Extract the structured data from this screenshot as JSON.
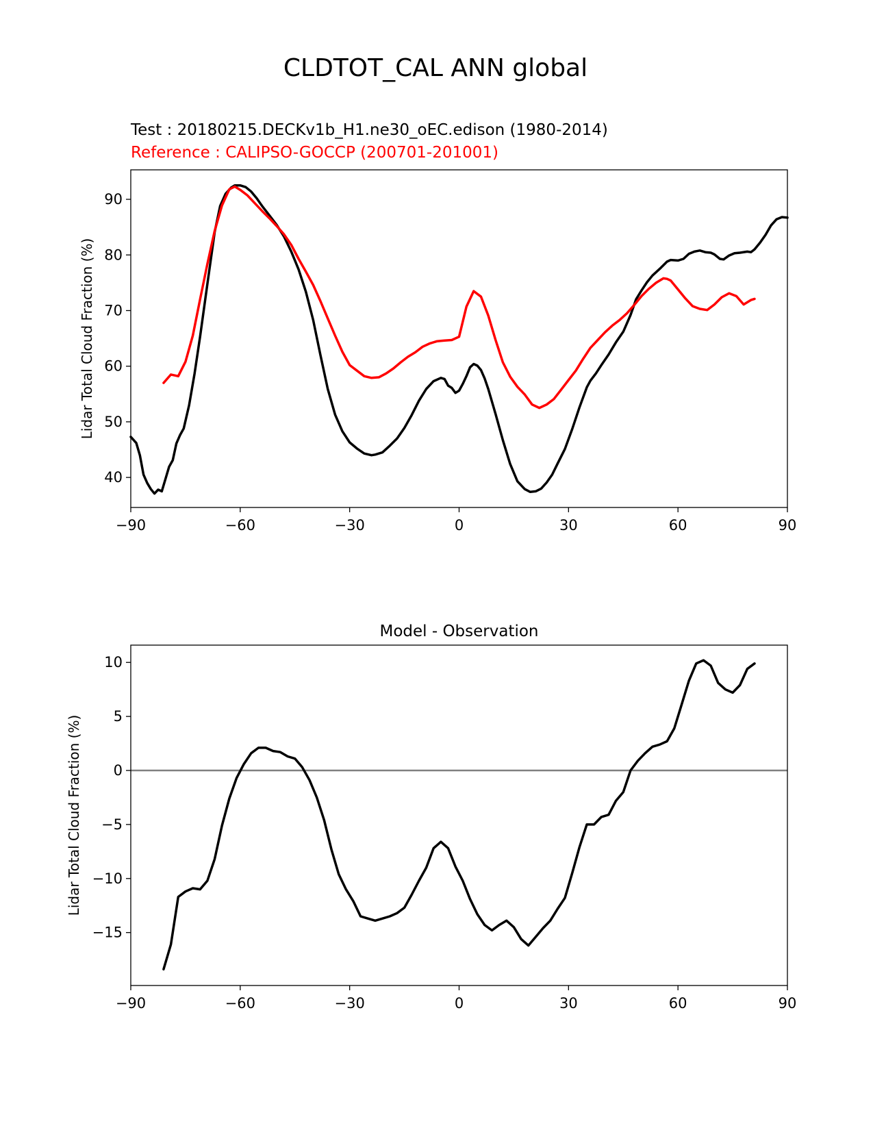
{
  "figure": {
    "title": "CLDTOT_CAL ANN global",
    "test_label": "Test : 20180215.DECKv1b_H1.ne30_oEC.edison (1980-2014)",
    "reference_label": "Reference : CALIPSO-GOCCP (200701-201001)"
  },
  "colors": {
    "test": "#000000",
    "reference": "#ff0000",
    "zero_line": "#808080"
  },
  "chart_data": [
    {
      "type": "line",
      "title": "",
      "xlabel": "",
      "ylabel": "Lidar Total Cloud Fraction (%)",
      "xlim": [
        -90,
        90
      ],
      "ylim": [
        34.6,
        95.3
      ],
      "xticks": [
        -90,
        -60,
        -30,
        0,
        30,
        60,
        90
      ],
      "xtick_labels": [
        "−90",
        "−60",
        "−30",
        "0",
        "30",
        "60",
        "90"
      ],
      "yticks": [
        40,
        50,
        60,
        70,
        80,
        90
      ],
      "ytick_labels": [
        "40",
        "50",
        "60",
        "70",
        "80",
        "90"
      ],
      "grid": false,
      "series": [
        {
          "role": "test",
          "x": [
            -90,
            -88.5,
            -87.5,
            -86.5,
            -85.5,
            -84.5,
            -83.5,
            -82.5,
            -81.5,
            -80.5,
            -79.5,
            -78.5,
            -77.5,
            -76.5,
            -75.5,
            -74,
            -72.5,
            -71,
            -69,
            -67,
            -65.5,
            -64,
            -62.5,
            -61.5,
            -60,
            -58.5,
            -57,
            -55.5,
            -54,
            -52,
            -50,
            -48,
            -46,
            -44,
            -42,
            -40,
            -38,
            -36,
            -34,
            -32,
            -30,
            -28,
            -26,
            -24,
            -23,
            -21,
            -19,
            -17,
            -15,
            -13,
            -11,
            -9,
            -7,
            -5,
            -4,
            -3,
            -2,
            -1,
            0,
            1,
            2,
            3,
            4,
            5,
            6,
            7,
            8,
            10,
            12,
            14,
            16,
            18,
            19.5,
            21,
            22.5,
            24,
            25.5,
            27,
            29,
            31,
            33,
            35,
            36,
            37.5,
            39,
            41,
            43,
            45,
            47,
            48.5,
            50,
            51.5,
            53,
            55,
            57,
            58,
            60,
            61.5,
            63,
            64.5,
            66,
            67.5,
            69,
            70,
            71.5,
            72.5,
            74,
            75.5,
            77,
            79,
            80,
            81,
            82.5,
            84,
            85.5,
            87,
            88.5,
            90
          ],
          "y": [
            47.3,
            46.2,
            44,
            40.5,
            39,
            37.9,
            37.1,
            37.8,
            37.5,
            39.7,
            41.9,
            43.1,
            46.1,
            47.6,
            48.8,
            53,
            58.7,
            65.3,
            74.8,
            84.1,
            88.8,
            91,
            92.1,
            92.5,
            92.5,
            92.2,
            91.4,
            90.2,
            88.8,
            87.1,
            85.4,
            83.3,
            80.6,
            77.4,
            73.4,
            68.3,
            62,
            55.9,
            51.3,
            48.3,
            46.3,
            45.2,
            44.3,
            44,
            44.1,
            44.5,
            45.7,
            47,
            48.9,
            51.2,
            53.8,
            55.9,
            57.3,
            57.9,
            57.7,
            56.5,
            56.1,
            55.2,
            55.6,
            56.8,
            58.2,
            59.8,
            60.4,
            60.1,
            59.3,
            57.8,
            55.9,
            51.4,
            46.7,
            42.4,
            39.3,
            37.9,
            37.4,
            37.5,
            38,
            39.1,
            40.5,
            42.5,
            45.1,
            48.7,
            52.6,
            56.2,
            57.4,
            58.7,
            60.2,
            62.1,
            64.3,
            66.2,
            69.2,
            72,
            73.6,
            75.1,
            76.3,
            77.5,
            78.8,
            79.1,
            79,
            79.3,
            80.2,
            80.6,
            80.8,
            80.5,
            80.4,
            80.1,
            79.3,
            79.2,
            79.9,
            80.3,
            80.4,
            80.6,
            80.5,
            81,
            82.2,
            83.6,
            85.3,
            86.4,
            86.8,
            86.7
          ]
        },
        {
          "role": "reference",
          "x": [
            -81,
            -79,
            -77,
            -75,
            -73,
            -71,
            -69,
            -67,
            -65,
            -63,
            -61.5,
            -60,
            -58,
            -56,
            -54,
            -52,
            -50,
            -48,
            -46,
            -44,
            -42,
            -40,
            -38,
            -36,
            -34,
            -32,
            -30,
            -28,
            -26,
            -24,
            -22,
            -20,
            -18,
            -16,
            -14,
            -12,
            -10,
            -8,
            -6,
            -4,
            -2,
            0,
            2,
            4,
            6,
            8,
            10,
            12,
            14,
            16,
            18,
            20,
            22,
            24,
            26,
            28,
            30,
            32,
            34,
            36,
            38,
            40,
            42,
            44,
            46,
            48,
            50,
            52,
            54,
            56,
            57,
            58,
            60,
            62,
            64,
            66,
            68,
            70,
            72,
            74,
            76,
            78,
            80,
            81
          ],
          "y": [
            57,
            58.5,
            58.2,
            60.8,
            65.5,
            72,
            78.4,
            84.3,
            88.9,
            91.8,
            92.3,
            91.7,
            90.7,
            89.3,
            87.9,
            86.6,
            85.2,
            83.7,
            81.8,
            79.3,
            77,
            74.6,
            71.7,
            68.6,
            65.5,
            62.6,
            60.2,
            59.2,
            58.2,
            57.9,
            58,
            58.7,
            59.6,
            60.7,
            61.7,
            62.5,
            63.5,
            64.1,
            64.5,
            64.6,
            64.7,
            65.3,
            70.7,
            73.5,
            72.5,
            69.1,
            64.7,
            60.7,
            58.1,
            56.3,
            54.9,
            53.1,
            52.5,
            53.1,
            54.1,
            55.8,
            57.5,
            59.2,
            61.3,
            63.3,
            64.7,
            66.1,
            67.3,
            68.3,
            69.5,
            71,
            72.6,
            73.9,
            75,
            75.8,
            75.7,
            75.4,
            73.8,
            72.2,
            70.8,
            70.3,
            70.1,
            71.1,
            72.4,
            73.1,
            72.6,
            71.1,
            71.9,
            72.1
          ]
        }
      ]
    },
    {
      "type": "line",
      "title": "Model - Observation",
      "xlabel": "",
      "ylabel": "Lidar Total Cloud Fraction (%)",
      "xlim": [
        -90,
        90
      ],
      "ylim": [
        -19.9,
        11.6
      ],
      "xticks": [
        -90,
        -60,
        -30,
        0,
        30,
        60,
        90
      ],
      "xtick_labels": [
        "−90",
        "−60",
        "−30",
        "0",
        "30",
        "60",
        "90"
      ],
      "yticks": [
        -15,
        -10,
        -5,
        0,
        5,
        10
      ],
      "ytick_labels": [
        "−15",
        "−10",
        "−5",
        "0",
        "5",
        "10"
      ],
      "grid": false,
      "zero_line": 0,
      "series": [
        {
          "role": "difference",
          "x": [
            -81,
            -79,
            -77,
            -75,
            -73,
            -71,
            -69,
            -67,
            -65,
            -63,
            -61,
            -59,
            -57,
            -55,
            -53,
            -51,
            -49,
            -47,
            -45,
            -43,
            -41,
            -39,
            -37,
            -35,
            -33,
            -31,
            -29,
            -27,
            -25,
            -23,
            -21,
            -19,
            -17,
            -15,
            -13,
            -11,
            -9,
            -7,
            -5,
            -3,
            -1,
            1,
            3,
            5,
            7,
            9,
            11,
            13,
            15,
            17,
            19,
            21,
            23,
            25,
            27,
            29,
            31,
            33,
            35,
            37,
            39,
            41,
            43,
            45,
            47,
            49,
            51,
            53,
            55,
            57,
            59,
            61,
            63,
            65,
            67,
            69,
            71,
            73,
            75,
            77,
            79,
            81
          ],
          "y": [
            -18.4,
            -16.1,
            -11.7,
            -11.2,
            -10.9,
            -11,
            -10.2,
            -8.2,
            -5.1,
            -2.6,
            -0.7,
            0.6,
            1.6,
            2.1,
            2.1,
            1.8,
            1.7,
            1.3,
            1.1,
            0.3,
            -0.9,
            -2.5,
            -4.6,
            -7.3,
            -9.6,
            -11,
            -12.1,
            -13.5,
            -13.7,
            -13.9,
            -13.7,
            -13.5,
            -13.2,
            -12.7,
            -11.5,
            -10.2,
            -9,
            -7.2,
            -6.6,
            -7.2,
            -8.9,
            -10.2,
            -11.9,
            -13.3,
            -14.3,
            -14.8,
            -14.3,
            -13.9,
            -14.5,
            -15.6,
            -16.2,
            -15.4,
            -14.6,
            -13.9,
            -12.8,
            -11.8,
            -9.5,
            -7.1,
            -5,
            -5,
            -4.3,
            -4.1,
            -2.8,
            -2,
            0,
            0.9,
            1.6,
            2.2,
            2.4,
            2.7,
            3.9,
            6.1,
            8.3,
            9.9,
            10.2,
            9.7,
            8.1,
            7.5,
            7.2,
            7.9,
            9.4,
            9.9
          ]
        }
      ]
    }
  ]
}
